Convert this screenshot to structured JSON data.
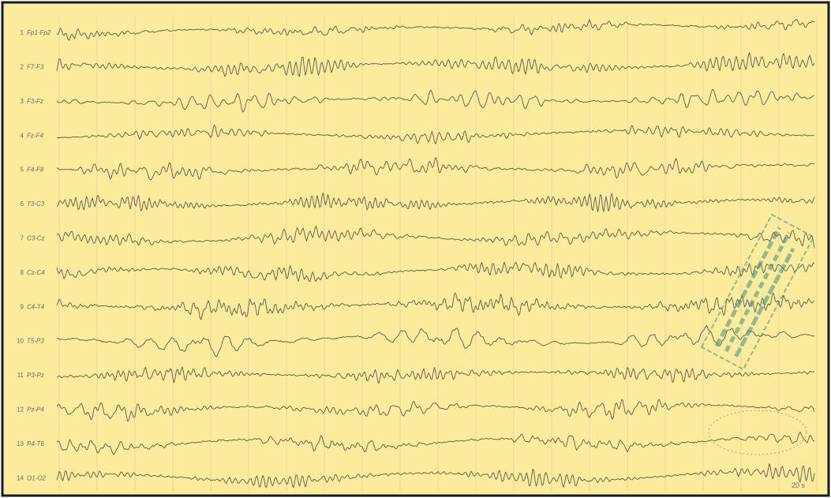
{
  "channels": [
    {
      "number": "1",
      "label": "Fp1-Fp2"
    },
    {
      "number": "2",
      "label": "F7-F3"
    },
    {
      "number": "3",
      "label": "F3-Fz"
    },
    {
      "number": "4",
      "label": "Fz-F4"
    },
    {
      "number": "5",
      "label": "F4-F8"
    },
    {
      "number": "6",
      "label": "T3-C3"
    },
    {
      "number": "7",
      "label": "C3-Cz"
    },
    {
      "number": "8",
      "label": "Cz-C4"
    },
    {
      "number": "9",
      "label": "C4-T4"
    },
    {
      "number": "10",
      "label": "T5-P3"
    },
    {
      "number": "11",
      "label": "P3-Pz"
    },
    {
      "number": "12",
      "label": "Pz-P4"
    },
    {
      "number": "13",
      "label": "P4-T6"
    },
    {
      "number": "14",
      "label": "O1-O2"
    }
  ],
  "footer": {
    "timescale": "20 s"
  }
}
